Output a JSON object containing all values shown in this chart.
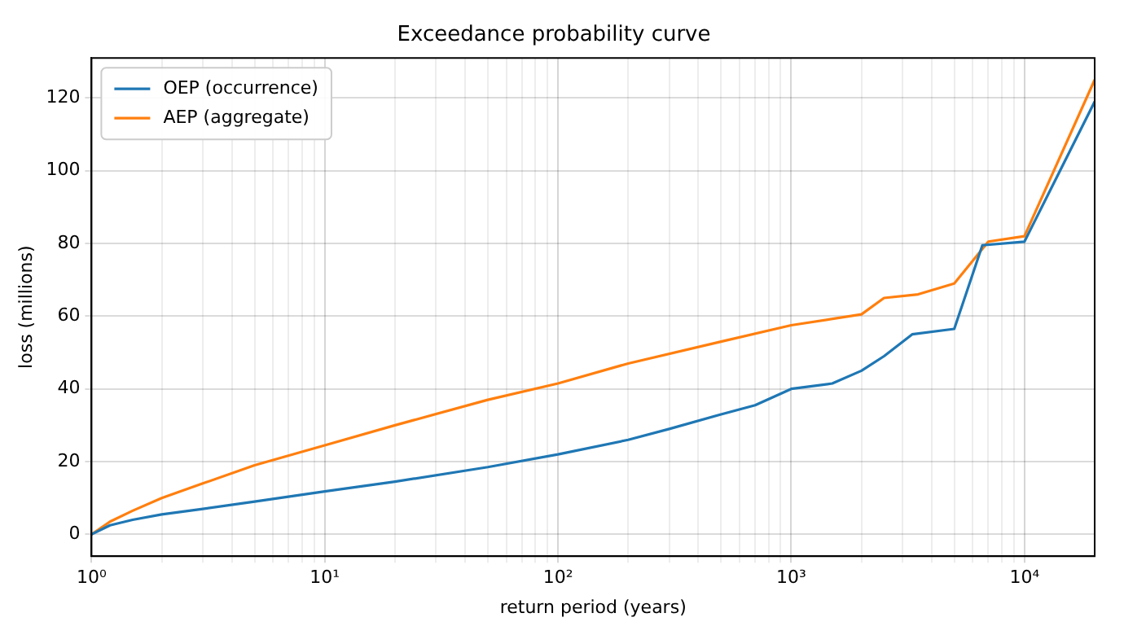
{
  "chart_data": {
    "type": "line",
    "title": "Exceedance probability curve",
    "xlabel": "return period (years)",
    "ylabel": "loss (millions)",
    "log": "x",
    "grid": true,
    "legend": "top left",
    "marker": "none",
    "line_style": "solid",
    "xlim": [
      1,
      20000
    ],
    "xticks": [
      {
        "value": 1,
        "label": "10⁰"
      },
      {
        "value": 10,
        "label": "10¹"
      },
      {
        "value": 100,
        "label": "10²"
      },
      {
        "value": 1000,
        "label": "10³"
      },
      {
        "value": 10000,
        "label": "10⁴"
      }
    ],
    "ylim": [
      -6,
      131
    ],
    "yticks": [
      0,
      20,
      40,
      60,
      80,
      100,
      120
    ],
    "series": [
      {
        "name": "OEP (occurrence)",
        "color": "#1f77b4",
        "x": [
          1,
          1.2,
          1.5,
          2,
          3,
          5,
          10,
          20,
          50,
          100,
          200,
          300,
          500,
          700,
          1000,
          1500,
          2000,
          2500,
          3300,
          5000,
          6600,
          10000,
          20000
        ],
        "values": [
          0,
          2.5,
          4,
          5.5,
          7,
          9,
          11.8,
          14.5,
          18.5,
          22,
          26,
          29,
          33,
          35.5,
          40,
          41.5,
          45,
          49,
          55,
          56.5,
          79.5,
          80.5,
          119
        ]
      },
      {
        "name": "AEP (aggregate)",
        "color": "#ff7f0e",
        "x": [
          1,
          1.2,
          1.5,
          2,
          3,
          5,
          10,
          20,
          50,
          100,
          200,
          500,
          1000,
          2000,
          2500,
          3500,
          5000,
          7000,
          10000,
          20000
        ],
        "values": [
          0,
          3.5,
          6.5,
          10,
          14,
          19,
          24.5,
          30,
          37,
          41.5,
          47,
          53,
          57.5,
          60.5,
          65,
          66,
          69,
          80.5,
          82,
          125
        ]
      }
    ]
  }
}
